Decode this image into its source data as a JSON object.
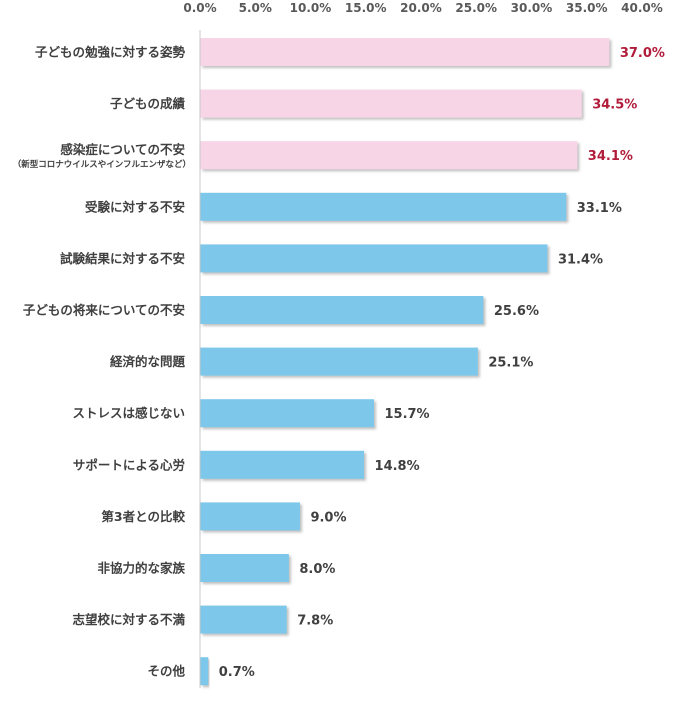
{
  "chart_data": {
    "type": "bar",
    "orientation": "horizontal",
    "title": "",
    "xlabel": "",
    "ylabel": "",
    "xlim": [
      0,
      40
    ],
    "ticks": [
      "0.0%",
      "5.0%",
      "10.0%",
      "15.0%",
      "20.0%",
      "25.0%",
      "30.0%",
      "35.0%",
      "40.0%"
    ],
    "grid": false,
    "axis_position": "top",
    "colors": {
      "highlight_bar": "#F7D5E6",
      "highlight_text": "#B01C3A",
      "normal_bar": "#7DC8EA",
      "normal_text": "#404040",
      "axis_line": "#C8C8C8",
      "shadow": "#A6A6A6"
    },
    "categories": [
      {
        "label": "子どもの勉強に対する姿勢",
        "sublabel": "",
        "value": 37.0,
        "value_label": "37.0%",
        "highlight": true
      },
      {
        "label": "子どもの成績",
        "sublabel": "",
        "value": 34.5,
        "value_label": "34.5%",
        "highlight": true
      },
      {
        "label": "感染症についての不安",
        "sublabel": "（新型コロナウイルスやインフルエンザなど）",
        "value": 34.1,
        "value_label": "34.1%",
        "highlight": true
      },
      {
        "label": "受験に対する不安",
        "sublabel": "",
        "value": 33.1,
        "value_label": "33.1%",
        "highlight": false
      },
      {
        "label": "試験結果に対する不安",
        "sublabel": "",
        "value": 31.4,
        "value_label": "31.4%",
        "highlight": false
      },
      {
        "label": "子どもの将来についての不安",
        "sublabel": "",
        "value": 25.6,
        "value_label": "25.6%",
        "highlight": false
      },
      {
        "label": "経済的な問題",
        "sublabel": "",
        "value": 25.1,
        "value_label": "25.1%",
        "highlight": false
      },
      {
        "label": "ストレスは感じない",
        "sublabel": "",
        "value": 15.7,
        "value_label": "15.7%",
        "highlight": false
      },
      {
        "label": "サポートによる心労",
        "sublabel": "",
        "value": 14.8,
        "value_label": "14.8%",
        "highlight": false
      },
      {
        "label": "第3者との比較",
        "sublabel": "",
        "value": 9.0,
        "value_label": "9.0%",
        "highlight": false
      },
      {
        "label": "非協力的な家族",
        "sublabel": "",
        "value": 8.0,
        "value_label": "8.0%",
        "highlight": false
      },
      {
        "label": "志望校に対する不満",
        "sublabel": "",
        "value": 7.8,
        "value_label": "7.8%",
        "highlight": false
      },
      {
        "label": "その他",
        "sublabel": "",
        "value": 0.7,
        "value_label": "0.7%",
        "highlight": false
      }
    ]
  }
}
